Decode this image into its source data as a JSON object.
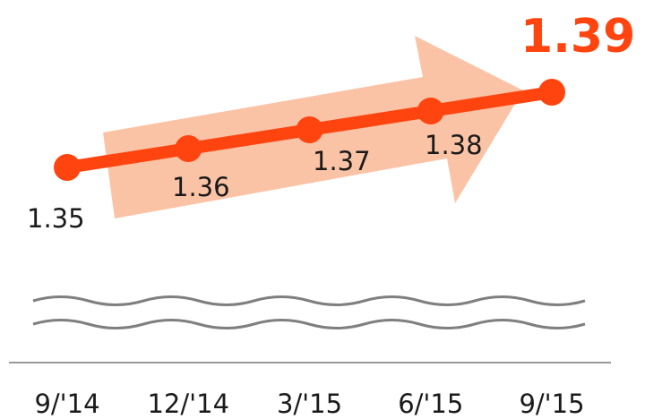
{
  "chart_data": {
    "type": "line",
    "categories": [
      "9/'14",
      "12/'14",
      "3/'15",
      "6/'15",
      "9/'15"
    ],
    "series": [
      {
        "values": [
          1.35,
          1.36,
          1.37,
          1.38,
          1.39
        ],
        "labels": [
          "1.35",
          "1.36",
          "1.37",
          "1.38",
          "1.39"
        ]
      }
    ],
    "highlight_last_point": true,
    "trend_arrow": "upward",
    "axis_break": true,
    "y_axis_visible": false,
    "grid": false
  },
  "colors": {
    "line": "#ff4410",
    "last_label": "#ff4410",
    "arrow": "#fbc3a6",
    "axis": "#999999",
    "break": "#7f7f7f",
    "text": "#1a1a1a"
  }
}
